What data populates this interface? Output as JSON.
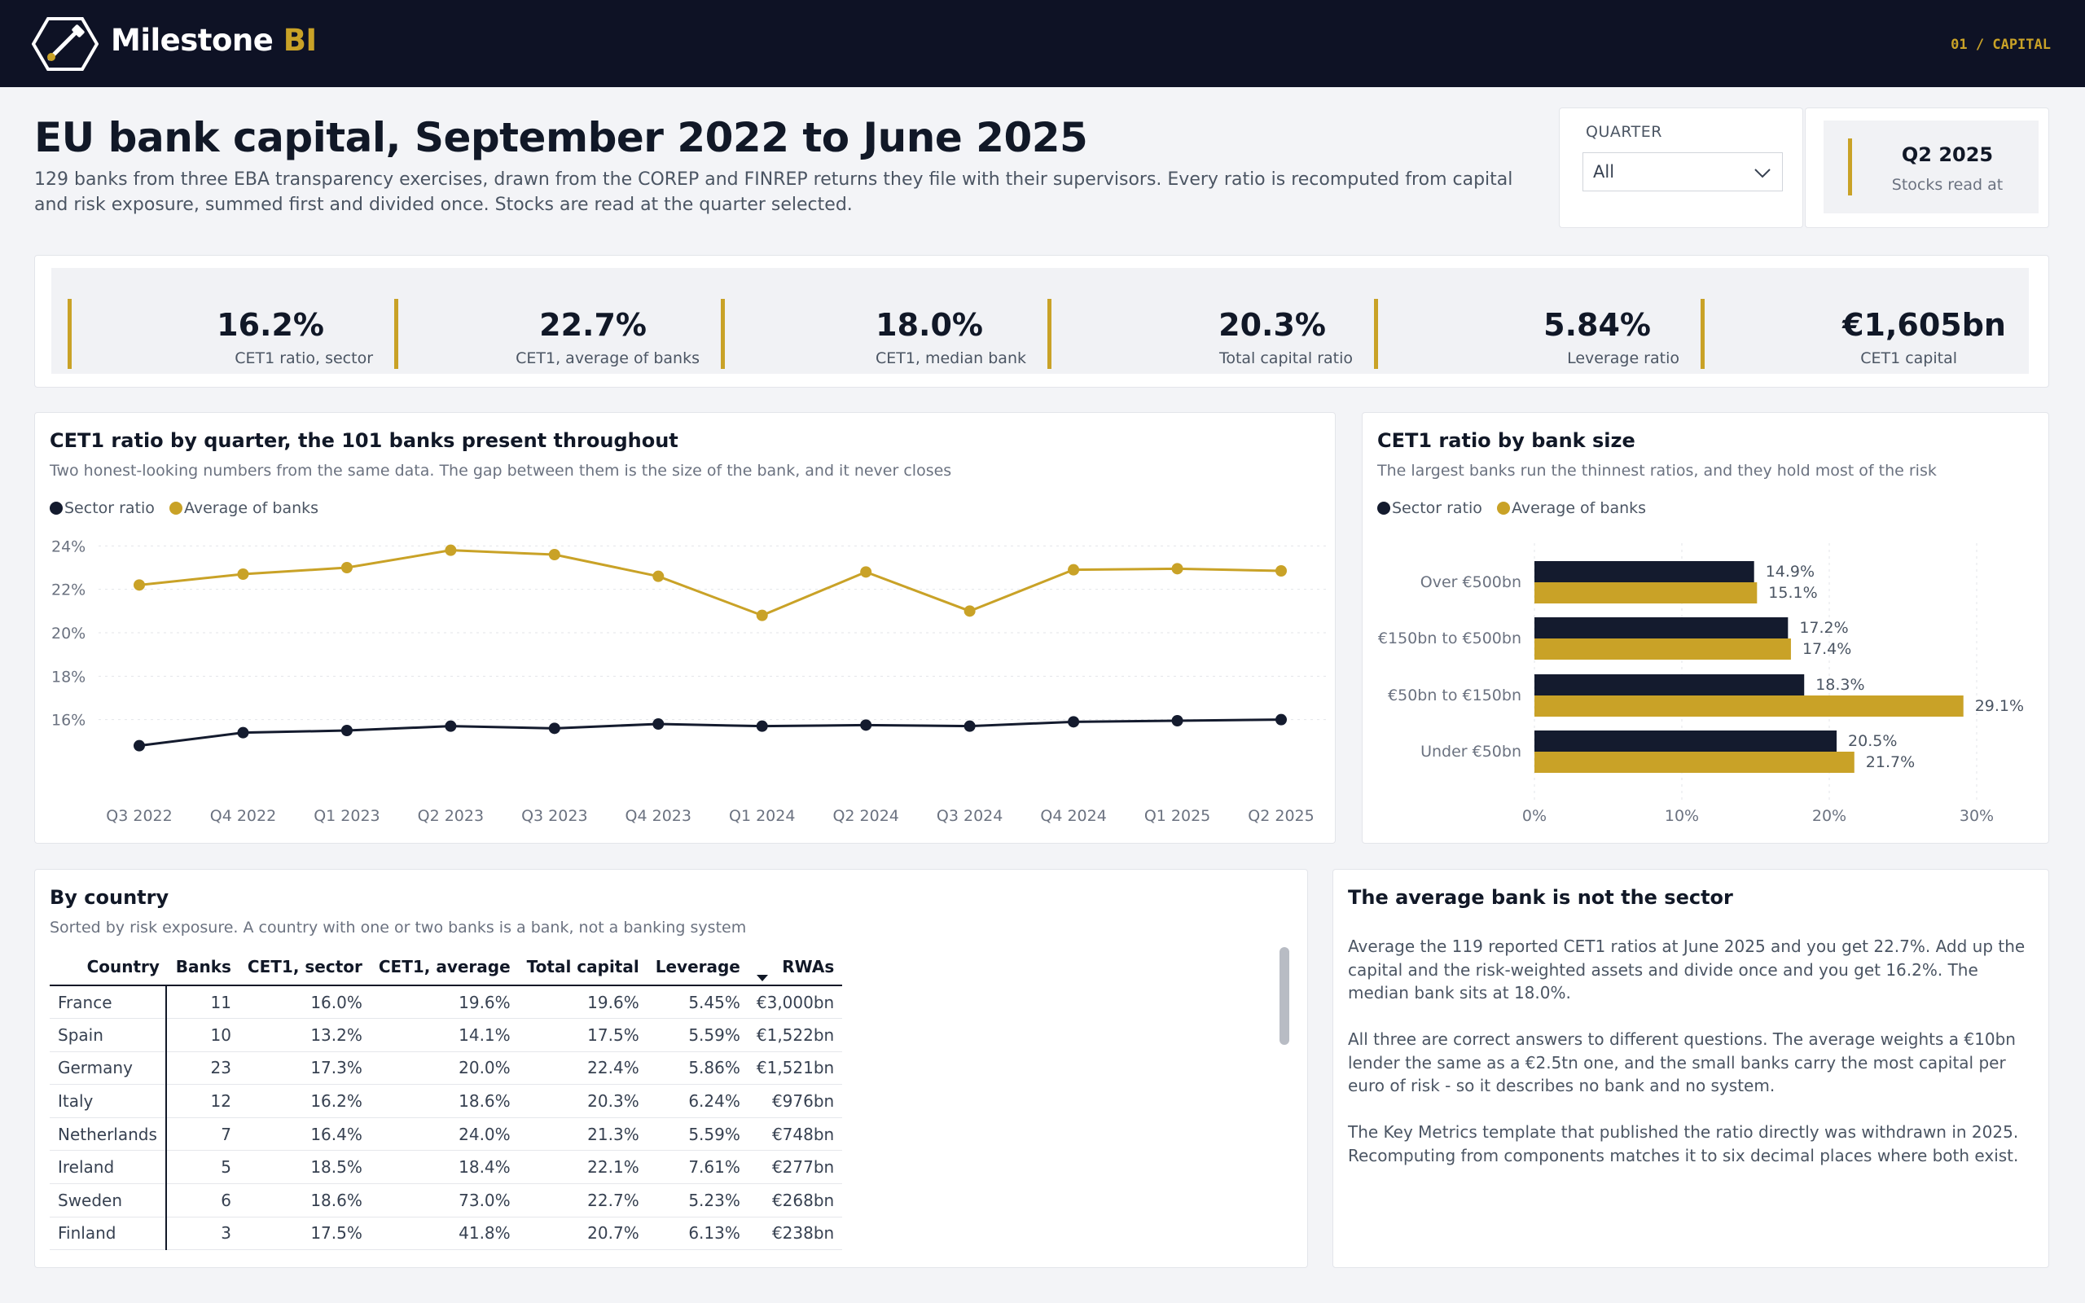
{
  "app": {
    "name": "Milestone",
    "name_accent": "BI",
    "page_tag": "01 / CAPITAL"
  },
  "header": {
    "title": "EU bank capital, September 2022 to June 2025",
    "subtitle": "129 banks from three EBA transparency exercises, drawn from the COREP and FINREP returns they file with their supervisors. Every ratio is recomputed from capital and risk exposure, summed first and divided once. Stocks are read at the quarter selected."
  },
  "filter": {
    "label": "QUARTER",
    "value": "All"
  },
  "period": {
    "value": "Q2 2025",
    "label": "Stocks read at"
  },
  "kpis": [
    {
      "value": "16.2%",
      "label": "CET1 ratio, sector"
    },
    {
      "value": "22.7%",
      "label": "CET1, average of banks"
    },
    {
      "value": "18.0%",
      "label": "CET1, median bank"
    },
    {
      "value": "20.3%",
      "label": "Total capital ratio"
    },
    {
      "value": "5.84%",
      "label": "Leverage ratio"
    },
    {
      "value": "€1,605bn",
      "label": "CET1 capital"
    }
  ],
  "colors": {
    "navy": "#141b2e",
    "gold": "#c9a227",
    "accent": "#c9a227"
  },
  "line_card": {
    "title": "CET1 ratio by quarter, the 101 banks present throughout",
    "subtitle": "Two honest-looking numbers from the same data. The gap between them is the size of the bank, and it never closes",
    "legend": [
      "Sector ratio",
      "Average of banks"
    ]
  },
  "bar_card": {
    "title": "CET1 ratio by bank size",
    "subtitle": "The largest banks run the thinnest ratios, and they hold most of the risk",
    "legend": [
      "Sector ratio",
      "Average of banks"
    ]
  },
  "chart_data": [
    {
      "type": "line",
      "x": [
        "Q3 2022",
        "Q4 2022",
        "Q1 2023",
        "Q2 2023",
        "Q3 2023",
        "Q4 2023",
        "Q1 2024",
        "Q2 2024",
        "Q3 2024",
        "Q4 2024",
        "Q1 2025",
        "Q2 2025"
      ],
      "series": [
        {
          "name": "Sector ratio",
          "color": "#141b2e",
          "values": [
            14.8,
            15.4,
            15.5,
            15.7,
            15.6,
            15.8,
            15.7,
            15.75,
            15.7,
            15.9,
            15.95,
            16.0
          ]
        },
        {
          "name": "Average of banks",
          "color": "#c9a227",
          "values": [
            22.2,
            22.7,
            23.0,
            23.8,
            23.6,
            22.6,
            20.8,
            22.8,
            21.0,
            22.9,
            22.95,
            22.85
          ]
        }
      ],
      "yticks": [
        "16%",
        "18%",
        "20%",
        "22%",
        "24%"
      ],
      "ylim": [
        14,
        24.2
      ],
      "grid": true,
      "legend_position": "top-left"
    },
    {
      "type": "bar",
      "orientation": "horizontal",
      "categories": [
        "Over €500bn",
        "€150bn to €500bn",
        "€50bn to €150bn",
        "Under €50bn"
      ],
      "series": [
        {
          "name": "Sector ratio",
          "color": "#141b2e",
          "values": [
            14.9,
            17.2,
            18.3,
            20.5
          ],
          "labels": [
            "14.9%",
            "17.2%",
            "18.3%",
            "20.5%"
          ]
        },
        {
          "name": "Average of banks",
          "color": "#c9a227",
          "values": [
            15.1,
            17.4,
            29.1,
            21.7
          ],
          "labels": [
            "15.1%",
            "17.4%",
            "29.1%",
            "21.7%"
          ]
        }
      ],
      "xticks": [
        "0%",
        "10%",
        "20%",
        "30%"
      ],
      "xlim": [
        0,
        30
      ],
      "grid": true,
      "legend_position": "top-left"
    }
  ],
  "country_table": {
    "title": "By country",
    "subtitle": "Sorted by risk exposure. A country with one or two banks is a bank, not a banking system",
    "columns": [
      "Country",
      "Banks",
      "CET1, sector",
      "CET1, average",
      "Total capital",
      "Leverage",
      "RWAs"
    ],
    "rows": [
      [
        "France",
        "11",
        "16.0%",
        "19.6%",
        "19.6%",
        "5.45%",
        "€3,000bn"
      ],
      [
        "Spain",
        "10",
        "13.2%",
        "14.1%",
        "17.5%",
        "5.59%",
        "€1,522bn"
      ],
      [
        "Germany",
        "23",
        "17.3%",
        "20.0%",
        "22.4%",
        "5.86%",
        "€1,521bn"
      ],
      [
        "Italy",
        "12",
        "16.2%",
        "18.6%",
        "20.3%",
        "6.24%",
        "€976bn"
      ],
      [
        "Netherlands",
        "7",
        "16.4%",
        "24.0%",
        "21.3%",
        "5.59%",
        "€748bn"
      ],
      [
        "Ireland",
        "5",
        "18.5%",
        "18.4%",
        "22.1%",
        "7.61%",
        "€277bn"
      ],
      [
        "Sweden",
        "6",
        "18.6%",
        "73.0%",
        "22.7%",
        "5.23%",
        "€268bn"
      ],
      [
        "Finland",
        "3",
        "17.5%",
        "41.8%",
        "20.7%",
        "6.13%",
        "€238bn"
      ]
    ]
  },
  "note": {
    "title": "The average bank is not the sector",
    "paragraphs": [
      "Average the 119 reported CET1 ratios at June 2025 and you get 22.7%. Add up the capital and the risk-weighted assets and divide once and you get 16.2%. The median bank sits at 18.0%.",
      "All three are correct answers to different questions. The average weights a €10bn lender the same as a €2.5tn one, and the small banks carry the most capital per euro of risk - so it describes no bank and no system.",
      "The Key Metrics template that published the ratio directly was withdrawn in 2025. Recomputing from components matches it to six decimal places where both exist."
    ]
  }
}
